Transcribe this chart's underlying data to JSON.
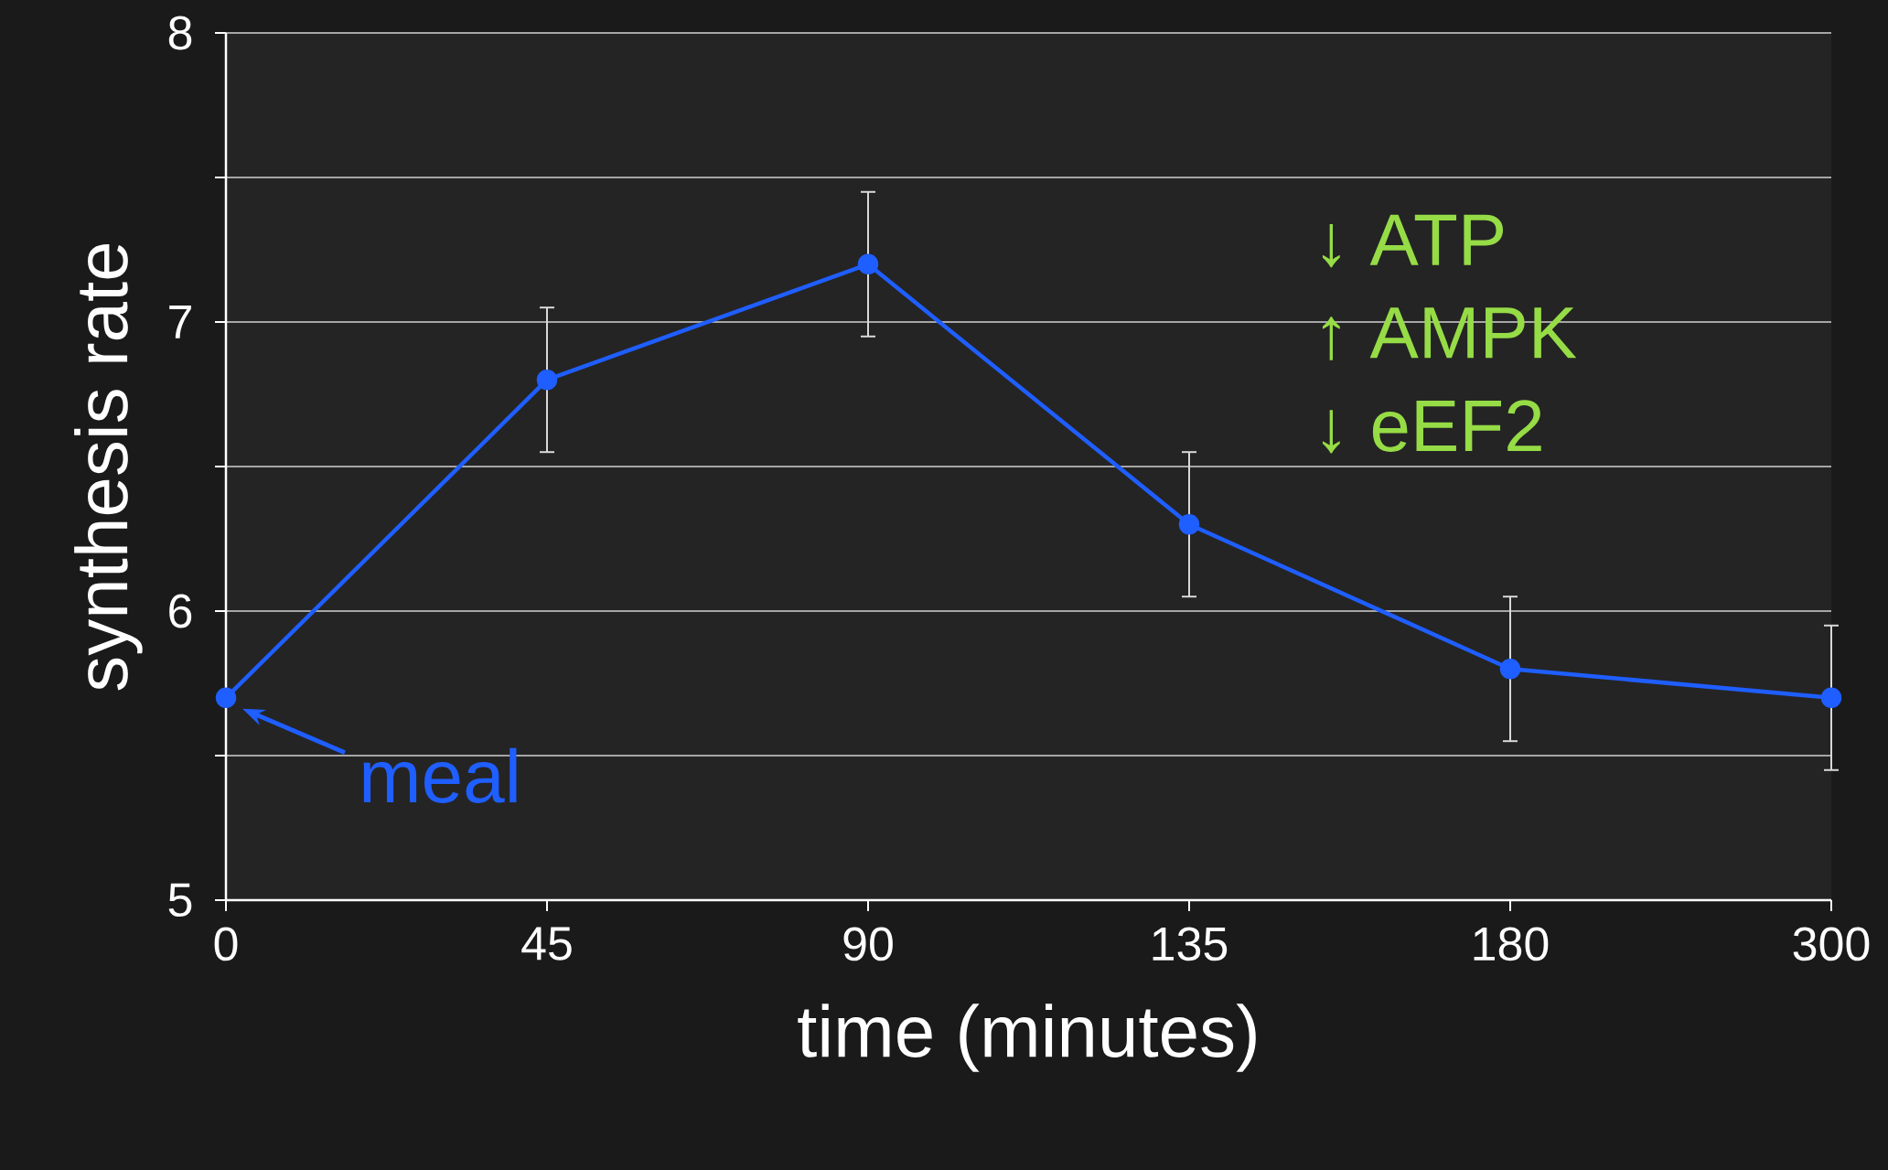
{
  "chart_data": {
    "type": "line",
    "xlabel": "time (minutes)",
    "ylabel": "synthesis rate",
    "categories": [
      "0",
      "45",
      "90",
      "135",
      "180",
      "300"
    ],
    "series": [
      {
        "color": "#1f5eff",
        "values": [
          5.7,
          6.8,
          7.2,
          6.3,
          5.8,
          5.7
        ],
        "errors": [
          null,
          0.25,
          0.25,
          0.25,
          0.25,
          0.25
        ]
      }
    ],
    "ylim": [
      5,
      8
    ],
    "yticks": [
      5,
      {
        "value": 5.5,
        "label": null
      },
      6,
      {
        "value": 6.5,
        "label": null
      },
      7,
      {
        "value": 7.5,
        "label": null
      },
      8
    ],
    "grid": "y",
    "marker": "circle",
    "line_style": "solid",
    "annotations": [
      {
        "text": "meal",
        "x": "0",
        "y": 5.7
      },
      "↓  ATP",
      "↑  AMPK",
      "↓  eEF2"
    ]
  }
}
